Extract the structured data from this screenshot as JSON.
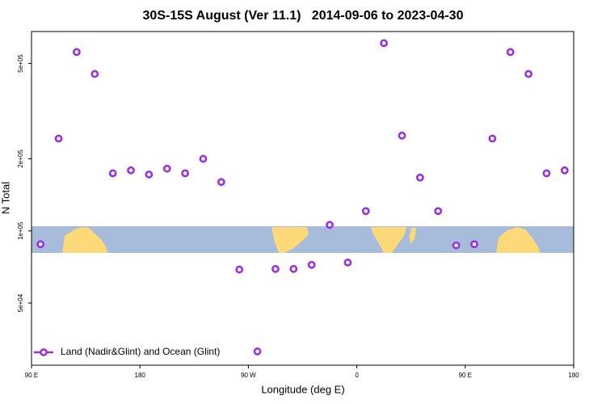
{
  "chart_data": {
    "type": "scatter",
    "title": "30S-15S August (Ver 11.1)   2014-09-06 to 2023-04-30",
    "x_label": "Longitude (deg E)",
    "y_label": "N Total",
    "y_log": true,
    "legend_position": "bottom-left",
    "xlim": [
      90,
      540
    ],
    "xticks": [
      {
        "value": 90,
        "label": "90 E"
      },
      180,
      {
        "value": 270,
        "label": "90 W"
      },
      {
        "value": 360,
        "label": "0"
      },
      {
        "value": 450,
        "label": "90 E"
      },
      {
        "value": 540,
        "label": "180"
      }
    ],
    "ylim": [
      27500,
      680000
    ],
    "yticks": [
      {
        "value": 50000,
        "label": "5e+04"
      },
      {
        "value": 100000,
        "label": "1e+05"
      },
      {
        "value": 200000,
        "label": "2e+05"
      },
      {
        "value": 500000,
        "label": "5e+05"
      }
    ],
    "series": [
      {
        "name": "Land (Nadir&Glint) and Ocean (Glint)",
        "color": "#9b30e0",
        "x": [
          97.5,
          112.5,
          127.5,
          142.5,
          157.5,
          172.5,
          187.5,
          202.5,
          217.5,
          232.5,
          247.5,
          262.5,
          277.5,
          292.5,
          307.5,
          322.5,
          337.5,
          352.5,
          367.5,
          382.5,
          397.5,
          412.5,
          427.5,
          442.5,
          457.5,
          472.5,
          487.5,
          502.5,
          517.5,
          532.5
        ],
        "values": [
          88000,
          243000,
          558000,
          452000,
          174000,
          179000,
          172000,
          182000,
          174000,
          200000,
          160000,
          69000,
          31400,
          69400,
          69400,
          72200,
          106000,
          73800,
          121000,
          608000,
          250000,
          167000,
          121000,
          87000,
          88000,
          243000,
          558000,
          452000,
          174000,
          179000
        ]
      }
    ]
  }
}
